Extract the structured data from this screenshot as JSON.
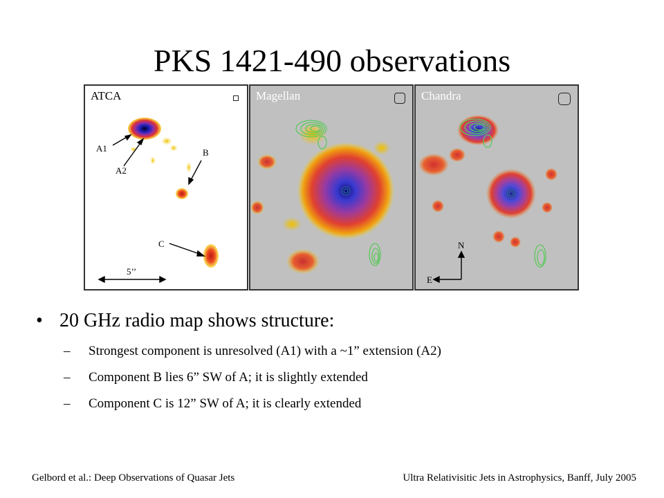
{
  "slide": {
    "title": "PKS 1421-490 observations"
  },
  "figure": {
    "panels": [
      {
        "label": "ATCA",
        "background": "#ffffff"
      },
      {
        "label": "Magellan",
        "background": "#c0c0c0"
      },
      {
        "label": "Chandra",
        "background": "#c0c0c0"
      }
    ],
    "annotations": {
      "a1": "A1",
      "a2": "A2",
      "b": "B",
      "c": "C",
      "scale": "5’’",
      "north": "N",
      "east": "E"
    }
  },
  "bullets": {
    "main": "20 GHz radio map shows structure:",
    "bullet_glyph": "•",
    "dash_glyph": "–",
    "subs": [
      "Strongest component is unresolved (A1) with a ~1” extension (A2)",
      "Component B lies 6” SW of A; it is slightly extended",
      "Component C is 12” SW of A; it is clearly extended"
    ]
  },
  "footer": {
    "left": "Gelbord et al.: Deep Observations of Quasar Jets",
    "right": "Ultra Relativisitic Jets in Astrophysics, Banff, July 2005"
  },
  "colors": {
    "contour": "#5cc85c",
    "hot_core": "#1a1aa8",
    "hot_mid": "#d83a3a",
    "hot_edge": "#f5c400"
  }
}
